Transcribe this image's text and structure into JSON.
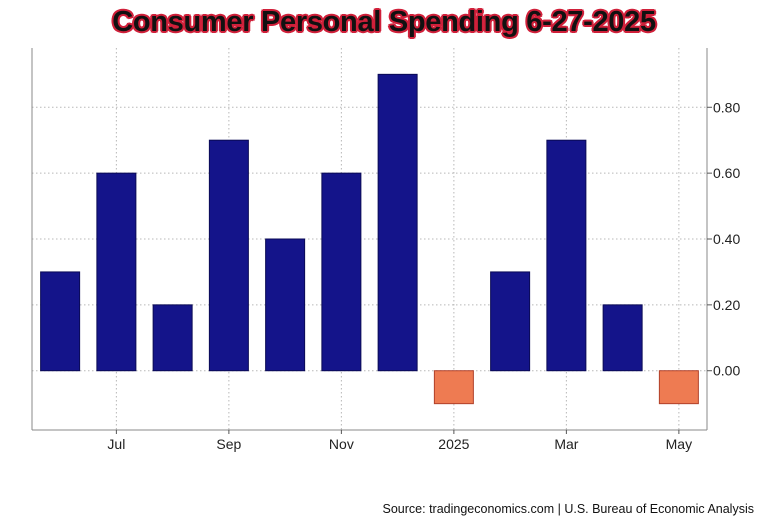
{
  "chart_data": {
    "type": "bar",
    "title": "Consumer Personal Spending 6-27-2025",
    "categories": [
      "Jun 2024",
      "Jul 2024",
      "Aug 2024",
      "Sep 2024",
      "Oct 2024",
      "Nov 2024",
      "Dec 2024",
      "Jan 2025",
      "Feb 2025",
      "Mar 2025",
      "Apr 2025",
      "May 2025"
    ],
    "values": [
      0.3,
      0.6,
      0.2,
      0.7,
      0.4,
      0.6,
      0.9,
      -0.1,
      0.3,
      0.7,
      0.2,
      -0.1
    ],
    "x_tick_labels": [
      {
        "index": 1,
        "label": "Jul"
      },
      {
        "index": 3,
        "label": "Sep"
      },
      {
        "index": 5,
        "label": "Nov"
      },
      {
        "index": 7,
        "label": "2025"
      },
      {
        "index": 9,
        "label": "Mar"
      },
      {
        "index": 11,
        "label": "May"
      }
    ],
    "y_ticks": [
      0.0,
      0.2,
      0.4,
      0.6,
      0.8
    ],
    "y_tick_labels": [
      "0.00",
      "0.20",
      "0.40",
      "0.60",
      "0.80"
    ],
    "ylim": [
      -0.18,
      0.98
    ],
    "xlabel": "",
    "ylabel": "",
    "grid": true,
    "y_axis_side": "right",
    "colors": {
      "positive": "#14148a",
      "negative": "#ee7b52"
    }
  },
  "source": "Source: tradingeconomics.com | U.S. Bureau of Economic Analysis"
}
